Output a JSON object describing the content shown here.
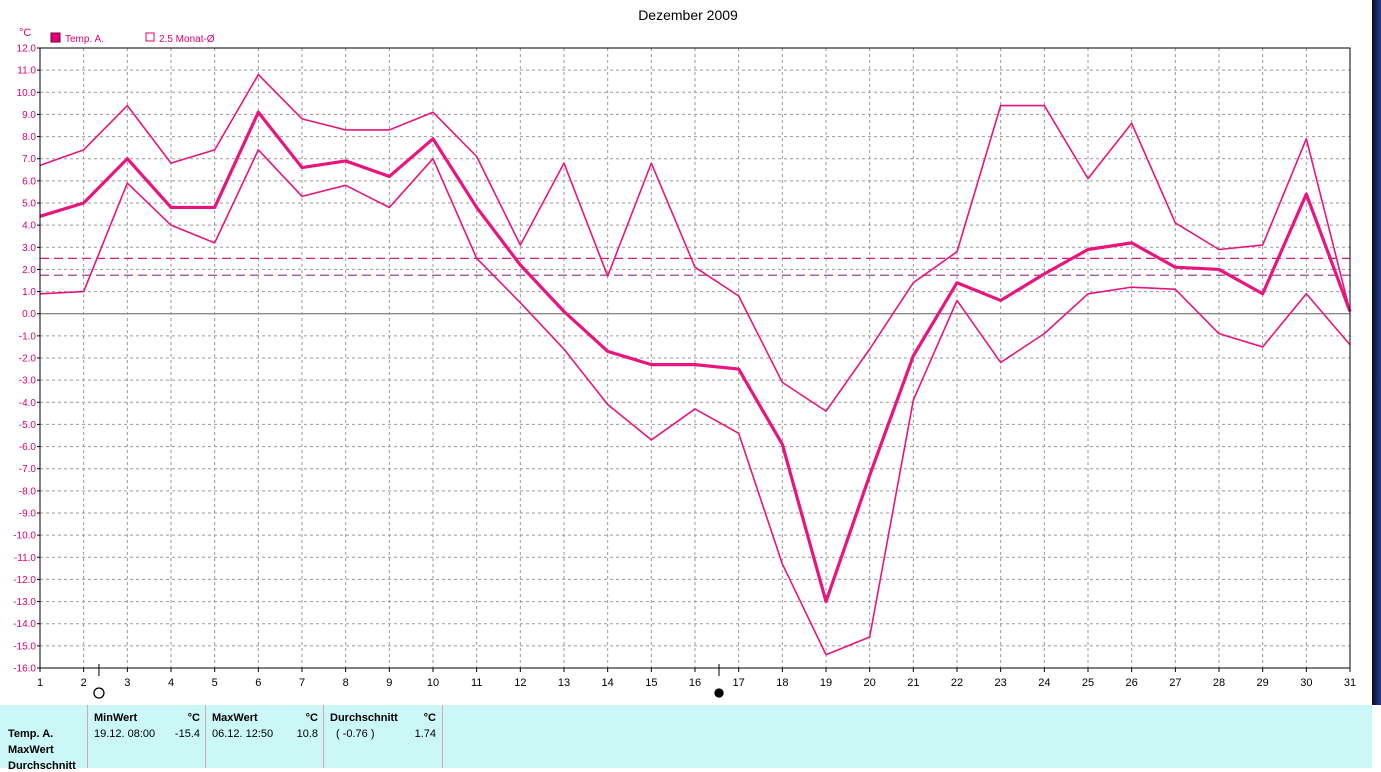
{
  "chart_data": {
    "type": "line",
    "title": "Dezember 2009",
    "ylabel": "°C",
    "ylim": [
      -16,
      12
    ],
    "ytick_step": 1,
    "xlim": [
      1,
      31
    ],
    "x": [
      1,
      2,
      3,
      4,
      5,
      6,
      7,
      8,
      9,
      10,
      11,
      12,
      13,
      14,
      15,
      16,
      17,
      18,
      19,
      20,
      21,
      22,
      23,
      24,
      25,
      26,
      27,
      28,
      29,
      30,
      31
    ],
    "grid": true,
    "legend": [
      {
        "label": "Temp. A.",
        "marker": "filled-square",
        "color": "#e0006f"
      },
      {
        "label": "2.5 Monat-Ø",
        "marker": "open-square",
        "color": "#e0006f"
      }
    ],
    "legend_position": "top-left",
    "series": [
      {
        "name": "Temp. A.",
        "style": "bold",
        "color": "#e8157f",
        "values": [
          4.4,
          5.0,
          7.0,
          4.8,
          4.8,
          9.1,
          6.6,
          6.9,
          6.2,
          7.9,
          4.8,
          2.2,
          0.1,
          -1.7,
          -2.3,
          -2.3,
          -2.5,
          -5.9,
          -13.0,
          -7.3,
          -1.9,
          1.4,
          0.6,
          1.8,
          2.9,
          3.2,
          2.1,
          2.0,
          0.9,
          5.4,
          0.1
        ]
      },
      {
        "style": "thin",
        "color": "#e8157f",
        "values": [
          6.7,
          7.4,
          9.4,
          6.8,
          7.4,
          10.8,
          8.8,
          8.3,
          8.3,
          9.1,
          7.1,
          3.1,
          6.8,
          1.7,
          6.8,
          2.1,
          0.8,
          -3.1,
          -4.4,
          -1.6,
          1.4,
          2.8,
          9.4,
          9.4,
          6.1,
          8.6,
          4.1,
          2.9,
          3.1,
          7.9,
          0.1
        ]
      },
      {
        "style": "thin",
        "color": "#e8157f",
        "values": [
          0.9,
          1.0,
          5.9,
          4.0,
          3.2,
          7.4,
          5.3,
          5.8,
          4.8,
          7.0,
          2.5,
          0.5,
          -1.6,
          -4.1,
          -5.7,
          -4.3,
          -5.4,
          -11.3,
          -15.4,
          -14.6,
          -3.9,
          0.6,
          -2.2,
          -0.9,
          0.9,
          1.2,
          1.1,
          -0.9,
          -1.5,
          0.9,
          -1.4
        ]
      }
    ],
    "reference_lines": [
      {
        "style": "dashed",
        "color": "#d11f7a",
        "value": 2.5
      },
      {
        "style": "dashed",
        "color": "#9b2a8a",
        "value": 1.74
      }
    ],
    "x_markers": [
      {
        "x": 2.35,
        "symbol": "open-circle"
      },
      {
        "x": 16.55,
        "symbol": "filled-circle"
      }
    ]
  },
  "stats": {
    "row_labels": [
      "Temp. A.",
      "MaxWert",
      "Durchschnitt"
    ],
    "min": {
      "header": "MinWert",
      "unit": "°C",
      "datetime": "19.12.  08:00",
      "value": "-15.4"
    },
    "max": {
      "header": "MaxWert",
      "unit": "°C",
      "datetime": "06.12.  12:50",
      "value": "10.8"
    },
    "avg": {
      "header": "Durchschnitt",
      "unit": "°C",
      "note": "( -0.76 )",
      "value": "1.74"
    }
  }
}
